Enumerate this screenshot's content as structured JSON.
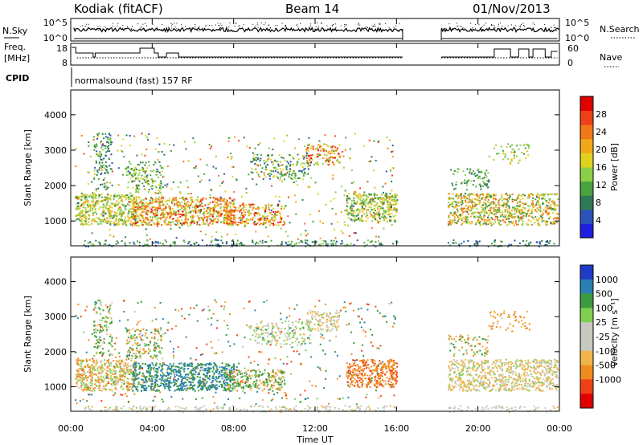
{
  "header": {
    "station": "Kodiak (fitACF)",
    "beam": "Beam 14",
    "date": "01/Nov/2013"
  },
  "top_panels": {
    "nsky": {
      "label": "N.Sky",
      "right_label": "N.Search",
      "ticks_left": [
        "10^5",
        "10^0"
      ],
      "ticks_right": [
        "10^5",
        "10^0"
      ]
    },
    "freq": {
      "label_line1": "Freq.",
      "label_line2": "[MHz]",
      "right_label": "Nave",
      "ticks_left": [
        "18",
        "8"
      ],
      "ticks_right": [
        "60",
        "0"
      ]
    },
    "cpid": {
      "label": "CPID",
      "text": "normalsound (fast) 157 RF"
    }
  },
  "colors": {
    "power": [
      "#1f1fe0",
      "#2a52b8",
      "#2e7a55",
      "#4aa23e",
      "#8ad04a",
      "#e0d020",
      "#f0a818",
      "#f07818",
      "#f04018",
      "#e00000"
    ],
    "velocity": [
      "#e00000",
      "#f04018",
      "#f08c1e",
      "#f0b44a",
      "#c8c8c0",
      "#c8c8c0",
      "#7fd050",
      "#3e9a3e",
      "#2a7fb0",
      "#1f3cc8"
    ],
    "ground": [
      "#b8b4a8",
      "#d0c8b0"
    ]
  },
  "chart_data": [
    {
      "type": "heatmap",
      "name": "Power",
      "ylabel": "Slant Range [km]",
      "ylim": [
        300,
        4700
      ],
      "xlim": [
        0,
        24
      ],
      "yticks": [
        1000,
        2000,
        3000,
        4000
      ],
      "colorbar": {
        "label": "Power [dB]",
        "range": [
          0,
          32
        ],
        "ticks": [
          4,
          8,
          12,
          16,
          20,
          24,
          28
        ]
      },
      "data_gap_hours": [
        16.35,
        18.2
      ]
    },
    {
      "type": "heatmap",
      "name": "Velocity",
      "ylabel": "Slant Range [km]",
      "ylim": [
        300,
        4700
      ],
      "xlim": [
        0,
        24
      ],
      "yticks": [
        1000,
        2000,
        3000,
        4000
      ],
      "colorbar": {
        "label": "Velocity [m s⁻¹]",
        "ticks": [
          "1000",
          "500",
          "100",
          "25",
          "-25",
          "-100",
          "-500",
          "-1000"
        ]
      },
      "data_gap_hours": [
        16.35,
        18.2
      ]
    }
  ],
  "time_axis": {
    "label": "Time UT",
    "ticks": [
      "00:00",
      "04:00",
      "08:00",
      "12:00",
      "16:00",
      "20:00",
      "00:00"
    ],
    "tick_hours": [
      0,
      4,
      8,
      12,
      16,
      20,
      24
    ]
  }
}
